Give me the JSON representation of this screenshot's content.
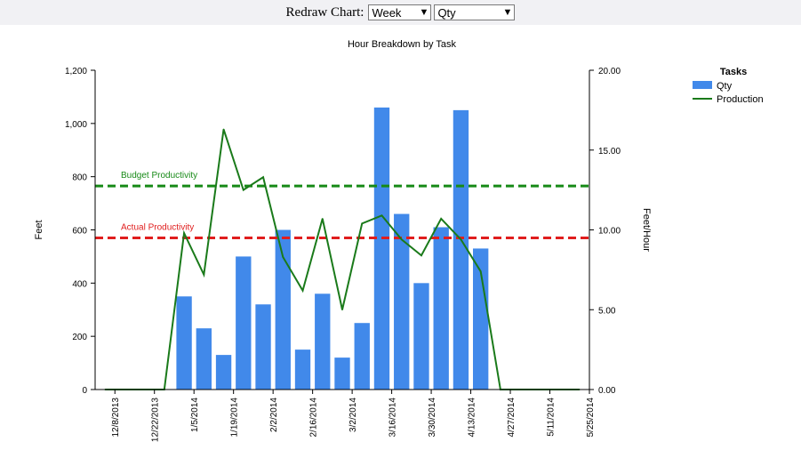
{
  "toolbar": {
    "label": "Redraw Chart:",
    "period_select": "Week",
    "measure_select": "Qty"
  },
  "chart_data": {
    "type": "bar",
    "title": "Hour Breakdown by Task",
    "ylabel": "Feet",
    "y2label": "Feet/Hour",
    "ylim": [
      0,
      1200
    ],
    "y2lim": [
      0,
      20
    ],
    "yticks": [
      "0",
      "200",
      "400",
      "600",
      "800",
      "1,000",
      "1,200"
    ],
    "y2ticks": [
      "0.00",
      "5.00",
      "10.00",
      "15.00",
      "20.00"
    ],
    "xtick_labels": [
      "12/8/2013",
      "12/22/2013",
      "1/5/2014",
      "1/19/2014",
      "2/2/2014",
      "2/16/2014",
      "3/2/2014",
      "3/16/2014",
      "3/30/2014",
      "4/13/2014",
      "4/27/2014",
      "5/11/2014",
      "5/25/2014"
    ],
    "legend": {
      "title": "Tasks",
      "position": "top-right"
    },
    "grid": false,
    "series": [
      {
        "name": "Qty",
        "type": "bar",
        "axis": "left",
        "color": "#4189ea",
        "values": [
          0,
          0,
          0,
          0,
          350,
          230,
          130,
          500,
          320,
          600,
          150,
          360,
          120,
          250,
          1060,
          660,
          400,
          610,
          1050,
          530,
          0,
          0,
          0,
          0,
          0
        ]
      },
      {
        "name": "Production",
        "type": "line",
        "axis": "right",
        "color": "#1a7a1a",
        "values": [
          0,
          0,
          0,
          0,
          9.8,
          7.2,
          16.3,
          12.5,
          13.3,
          8.3,
          6.2,
          10.7,
          5.0,
          10.4,
          10.9,
          9.4,
          8.4,
          10.7,
          9.4,
          7.4,
          0,
          0,
          0,
          0,
          0
        ]
      }
    ],
    "reference_lines": [
      {
        "label": "Budget Productivity",
        "axis": "right",
        "value": 12.75,
        "color": "#178a17"
      },
      {
        "label": "Actual Productivity",
        "axis": "right",
        "value": 9.5,
        "color": "#e01e1e"
      }
    ]
  }
}
